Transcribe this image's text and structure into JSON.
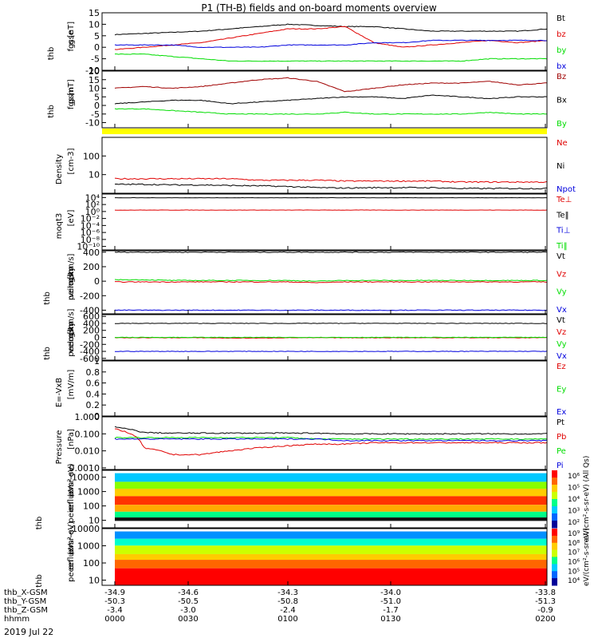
{
  "title": "P1 (TH-B) fields and on-board moments overview",
  "date": "2019 Jul 22",
  "colors": {
    "black": "#000000",
    "red": "#e00000",
    "darkred": "#a00000",
    "green": "#00dd00",
    "blue": "#0000dd",
    "yellow": "#ffff00"
  },
  "chart_data": [
    {
      "type": "line",
      "ylabel": [
        "thb",
        "fgs",
        "gse",
        "[nT]"
      ],
      "ylim": [
        -10,
        15
      ],
      "ticks": [
        -10,
        -5,
        0,
        5,
        10,
        15
      ],
      "series": [
        {
          "name": "Bt",
          "color": "#000000",
          "values": [
            5.5,
            6,
            6.5,
            7,
            8,
            9,
            10,
            9.5,
            9,
            9,
            8,
            7,
            7,
            7,
            7,
            8
          ]
        },
        {
          "name": "bz",
          "color": "#e00000",
          "values": [
            -1,
            0,
            1,
            2,
            4,
            6,
            8,
            8,
            9,
            2,
            0,
            1,
            2,
            3,
            2,
            3
          ]
        },
        {
          "name": "by",
          "color": "#00dd00",
          "values": [
            -3,
            -3,
            -4,
            -5,
            -6,
            -6,
            -6,
            -6,
            -6,
            -6,
            -6,
            -6,
            -6,
            -5,
            -5,
            -5
          ]
        },
        {
          "name": "bx",
          "color": "#0000dd",
          "values": [
            1,
            1,
            1,
            0,
            0,
            0,
            1,
            1,
            1,
            2,
            2,
            3,
            3,
            3,
            3,
            3
          ]
        }
      ]
    },
    {
      "type": "line",
      "ylabel": [
        "thb",
        "fgs",
        "gsm",
        "[nT]"
      ],
      "ylim": [
        -13,
        20
      ],
      "ticks": [
        -10,
        -5,
        0,
        5,
        10,
        15,
        20
      ],
      "series": [
        {
          "name": "Bz",
          "color": "#a00000",
          "values": [
            10,
            11,
            10,
            11,
            13,
            15,
            16,
            14,
            8,
            10,
            12,
            13,
            13,
            14,
            12,
            13
          ]
        },
        {
          "name": "Bx",
          "color": "#000000",
          "values": [
            1,
            2,
            3,
            3,
            1,
            2,
            3,
            4,
            5,
            5,
            4,
            6,
            5,
            4,
            5,
            5
          ]
        },
        {
          "name": "By",
          "color": "#00dd00",
          "values": [
            -2,
            -2,
            -3,
            -4,
            -5,
            -5,
            -5,
            -5,
            -4,
            -5,
            -5,
            -5,
            -5,
            -4,
            -5,
            -5
          ]
        }
      ]
    },
    {
      "type": "line",
      "ylabel": [
        "Density",
        "[cm-3]"
      ],
      "ylim": [
        1,
        1000
      ],
      "log": true,
      "ticks": [
        10,
        100
      ],
      "series": [
        {
          "name": "Ne",
          "color": "#e00000",
          "values": [
            6,
            6,
            6,
            6,
            6,
            5,
            5,
            5,
            4.5,
            4.5,
            4.5,
            4.5,
            4,
            4,
            4,
            4
          ]
        },
        {
          "name": "Ni",
          "color": "#000000",
          "values": [
            3,
            3,
            2.8,
            2.8,
            2.6,
            2.5,
            2.3,
            2,
            1.9,
            2,
            2,
            2,
            1.8,
            1.8,
            1.8,
            1.8
          ]
        },
        {
          "name": "Npot",
          "color": "#0000dd",
          "values": []
        }
      ]
    },
    {
      "type": "line",
      "ylabel": [
        "moqt3",
        "[eV]"
      ],
      "ylim": [
        1e-11,
        10000
      ],
      "log": true,
      "ticks": [
        "10⁴",
        "10²",
        "10⁰",
        "10⁻²",
        "10⁻⁴",
        "10⁻⁶",
        "10⁻⁸",
        "10⁻¹⁰"
      ],
      "series": [
        {
          "name": "Te⊥",
          "color": "#e00000",
          "values": [
            0.5,
            0.5,
            0.5,
            0.5,
            0.5,
            0.5,
            0.5,
            0.5,
            0.5,
            0.5,
            0.5,
            0.5,
            0.5,
            0.5,
            0.5,
            0.5
          ]
        },
        {
          "name": "Te‖",
          "color": "#000000",
          "values": [
            1000,
            1000,
            1000,
            1000,
            1000,
            1000,
            1000,
            1000,
            1000,
            1000,
            1000,
            1000,
            1000,
            1000,
            1000,
            1000
          ]
        },
        {
          "name": "Ti⊥",
          "color": "#0000dd",
          "values": []
        },
        {
          "name": "Ti‖",
          "color": "#00dd00",
          "values": []
        }
      ]
    },
    {
      "type": "line",
      "ylabel": [
        "thb",
        "peim",
        "velocity",
        "gsm",
        "[km/s]"
      ],
      "ylim": [
        -450,
        420
      ],
      "ticks": [
        -400,
        -200,
        0,
        200,
        400
      ],
      "series": [
        {
          "name": "Vt",
          "color": "#000000",
          "values": [
            400,
            400,
            400,
            400,
            400,
            400,
            400,
            400,
            400,
            400,
            400,
            400,
            400,
            400,
            400,
            400
          ]
        },
        {
          "name": "Vz",
          "color": "#e00000",
          "values": [
            -10,
            -10,
            -10,
            -10,
            -10,
            -10,
            -10,
            -20,
            -10,
            -10,
            -10,
            -10,
            -10,
            -10,
            -10,
            -10
          ]
        },
        {
          "name": "Vy",
          "color": "#00dd00",
          "values": [
            20,
            20,
            10,
            10,
            10,
            10,
            10,
            0,
            10,
            10,
            10,
            10,
            10,
            10,
            10,
            10
          ]
        },
        {
          "name": "Vx",
          "color": "#0000dd",
          "values": [
            -400,
            -400,
            -400,
            -400,
            -400,
            -400,
            -400,
            -400,
            -400,
            -400,
            -400,
            -400,
            -400,
            -400,
            -400,
            -400
          ]
        }
      ]
    },
    {
      "type": "line",
      "ylabel": [
        "thb",
        "peem",
        "velocity",
        "gsm",
        "[km/s]"
      ],
      "ylim": [
        -650,
        650
      ],
      "ticks": [
        -600,
        -400,
        -200,
        0,
        200,
        400,
        600
      ],
      "series": [
        {
          "name": "Vt",
          "color": "#000000",
          "values": [
            400,
            400,
            400,
            400,
            400,
            400,
            400,
            400,
            400,
            400,
            400,
            400,
            400,
            400,
            400,
            400
          ]
        },
        {
          "name": "Vz",
          "color": "#e00000",
          "values": [
            -10,
            -10,
            -10,
            -10,
            -20,
            -20,
            -10,
            -10,
            -10,
            -10,
            -10,
            -10,
            -10,
            -10,
            -10,
            -10
          ]
        },
        {
          "name": "Vy",
          "color": "#00dd00",
          "values": [
            0,
            0,
            0,
            0,
            0,
            0,
            0,
            0,
            0,
            0,
            0,
            0,
            0,
            0,
            0,
            0
          ]
        },
        {
          "name": "Vx",
          "color": "#0000dd",
          "values": [
            -400,
            -400,
            -400,
            -400,
            -400,
            -400,
            -400,
            -400,
            -400,
            -400,
            -400,
            -400,
            -400,
            -400,
            -400,
            -400
          ]
        }
      ]
    },
    {
      "type": "line",
      "ylabel": [
        "E=-VxB",
        "[mV/m]"
      ],
      "ylim": [
        0,
        1
      ],
      "ticks": [
        0.0,
        0.2,
        0.4,
        0.6,
        0.8,
        1.0
      ],
      "series": [
        {
          "name": "Ez",
          "color": "#e00000",
          "values": []
        },
        {
          "name": "Ey",
          "color": "#00dd00",
          "values": []
        },
        {
          "name": "Ex",
          "color": "#0000dd",
          "values": []
        }
      ]
    },
    {
      "type": "line",
      "ylabel": [
        "Pressure",
        "[nPa]"
      ],
      "ylim": [
        0.0008,
        1
      ],
      "log": true,
      "ticks": [
        0.001,
        0.01,
        0.1,
        1
      ],
      "tick_labels": [
        "0.0010",
        "0.010",
        "0.100",
        "1.000"
      ],
      "series": [
        {
          "name": "Pt",
          "color": "#000000",
          "values": [
            0.25,
            0.12,
            0.11,
            0.11,
            0.11,
            0.11,
            0.11,
            0.11,
            0.1,
            0.1,
            0.1,
            0.1,
            0.1,
            0.1,
            0.1,
            0.1
          ]
        },
        {
          "name": "Pb",
          "color": "#e00000",
          "values": [
            0.2,
            0.015,
            0.006,
            0.006,
            0.01,
            0.015,
            0.02,
            0.025,
            0.025,
            0.03,
            0.03,
            0.03,
            0.03,
            0.03,
            0.03,
            0.03
          ]
        },
        {
          "name": "Pe",
          "color": "#00dd00",
          "values": [
            0.06,
            0.06,
            0.06,
            0.06,
            0.06,
            0.06,
            0.06,
            0.05,
            0.05,
            0.05,
            0.05,
            0.05,
            0.05,
            0.05,
            0.05,
            0.05
          ]
        },
        {
          "name": "Pi",
          "color": "#0000dd",
          "values": [
            0.05,
            0.05,
            0.05,
            0.05,
            0.05,
            0.05,
            0.05,
            0.05,
            0.04,
            0.04,
            0.04,
            0.04,
            0.04,
            0.04,
            0.04,
            0.04
          ]
        }
      ]
    },
    {
      "type": "heatmap",
      "ylabel": [
        "thb",
        "peir",
        "en",
        "eflux",
        "eV",
        "(cm²-s-",
        "sr-eV)"
      ],
      "ylim": [
        3,
        30000
      ],
      "log": true,
      "ticks": [
        10,
        100,
        1000,
        10000
      ],
      "tick_labels": [
        "10",
        "100",
        "1000",
        "10000"
      ],
      "zlabel": "eV/(cm²-s-sr-eV) (All Qs)",
      "zticks": [
        "10²",
        "10³",
        "10⁴",
        "10⁵",
        "10⁶"
      ]
    },
    {
      "type": "heatmap",
      "ylabel": [
        "thb",
        "peer",
        "en",
        "eflux",
        "eV",
        "(cm²-s-",
        "sr-eV)"
      ],
      "ylim": [
        5,
        10000
      ],
      "log": true,
      "ticks": [
        10,
        100,
        1000,
        10000
      ],
      "tick_labels": [
        "10",
        "100",
        "1000",
        "10000"
      ],
      "zlabel": "eV/(cm²-s-sr-eV)",
      "zticks": [
        "10⁴",
        "10⁵",
        "10⁶",
        "10⁷",
        "10⁸",
        "10⁹"
      ]
    }
  ],
  "axis": {
    "rows": [
      {
        "label": "thb_X-GSM",
        "values": [
          "-34.9",
          "-34.6",
          "-34.3",
          "-34.0",
          "-33.8"
        ]
      },
      {
        "label": "thb_Y-GSM",
        "values": [
          "-50.3",
          "-50.5",
          "-50.8",
          "-51.0",
          "-51.3"
        ]
      },
      {
        "label": "thb_Z-GSM",
        "values": [
          "-3.4",
          "-3.0",
          "-2.4",
          "-1.7",
          "-0.9"
        ]
      },
      {
        "label": "hhmm",
        "values": [
          "0000",
          "0030",
          "0100",
          "0130",
          "0200"
        ]
      }
    ]
  }
}
